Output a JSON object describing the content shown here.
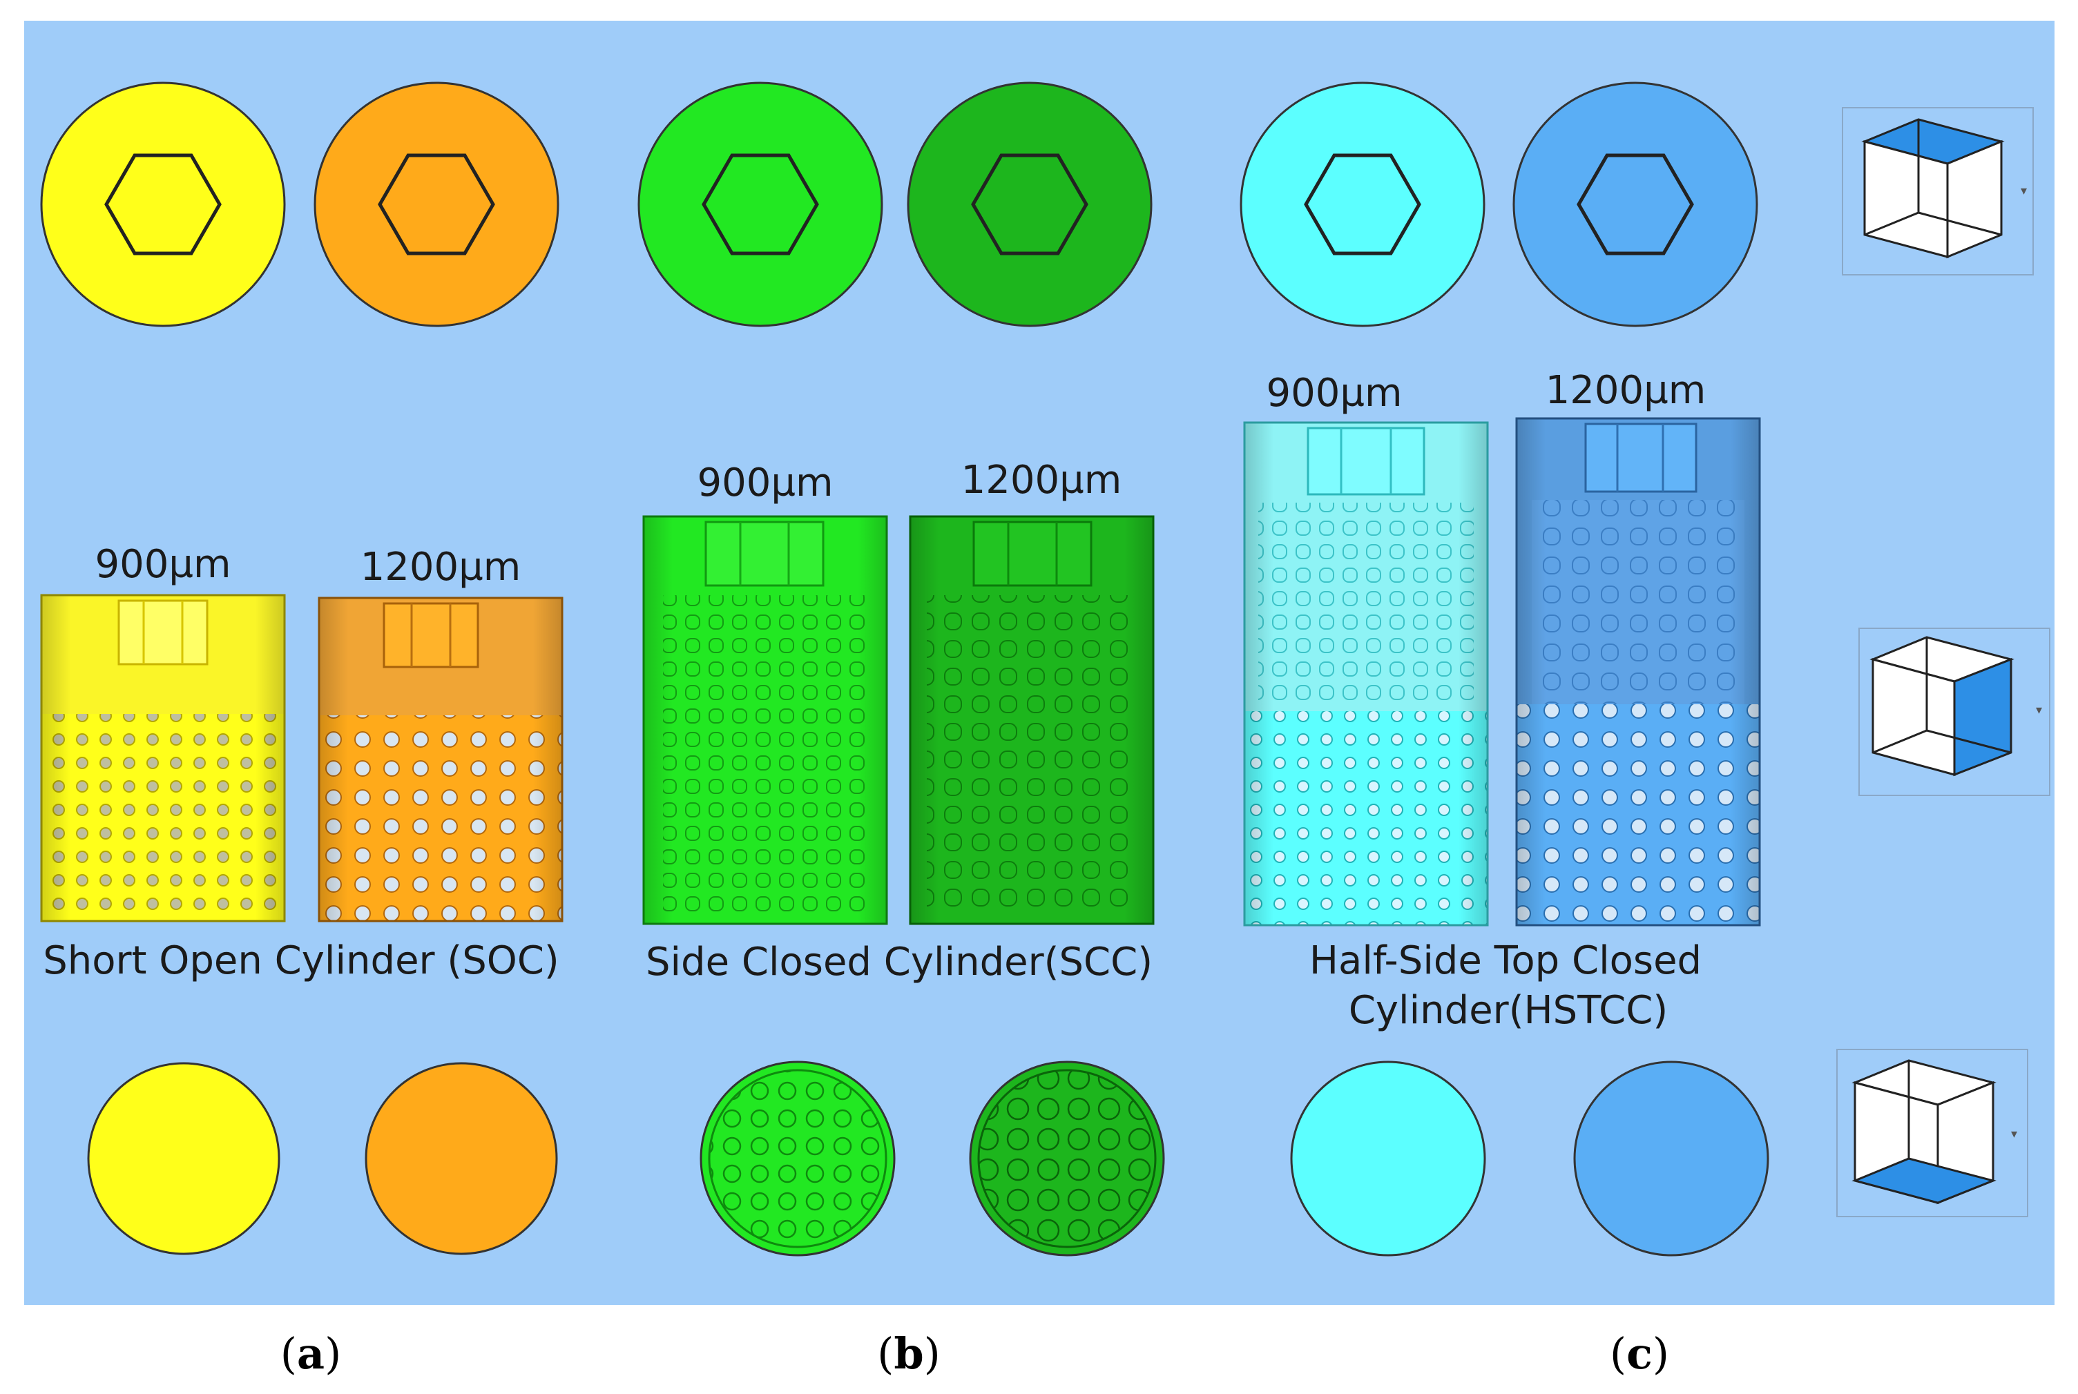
{
  "colors": {
    "background": "#9fccf9",
    "soc_900": "#ffff1a",
    "soc_1200": "#ffaa1a",
    "scc_900": "#22e822",
    "scc_1200": "#1db61d",
    "hstcc_900": "#5cffff",
    "hstcc_1200": "#5aaef5",
    "cube_face": "#2d8fe6"
  },
  "panels": [
    {
      "id": "a",
      "caption_open": "(",
      "caption_letter": "a",
      "caption_close": ")",
      "title_line1": "Short Open Cylinder (SOC)",
      "title_line2": "",
      "label_900": "900µm",
      "label_1200": "1200µm"
    },
    {
      "id": "b",
      "caption_open": "(",
      "caption_letter": "b",
      "caption_close": ")",
      "title_line1": "Side Closed Cylinder(SCC)",
      "title_line2": "",
      "label_900": "900µm",
      "label_1200": "1200µm"
    },
    {
      "id": "c",
      "caption_open": "(",
      "caption_letter": "c",
      "caption_close": ")",
      "title_line1": "Half-Side Top Closed",
      "title_line2": "Cylinder(HSTCC)",
      "label_900": "900µm",
      "label_1200": "1200µm"
    }
  ],
  "view_cubes": [
    {
      "view": "top",
      "icon": "view-cube-top-icon"
    },
    {
      "view": "side",
      "icon": "view-cube-side-icon"
    },
    {
      "view": "bottom",
      "icon": "view-cube-bottom-icon"
    }
  ]
}
